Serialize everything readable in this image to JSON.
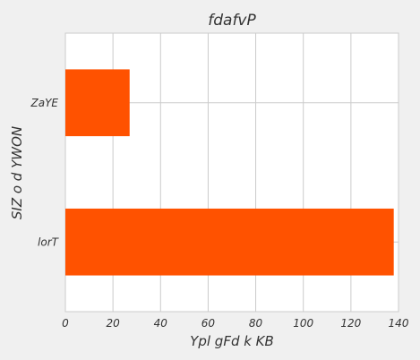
{
  "chart_data": {
    "type": "bar",
    "orientation": "horizontal",
    "title": "fdafvP",
    "xlabel": "Ypl gFd k KB",
    "ylabel": "SIZ  o d YWON",
    "categories": [
      "lorT",
      "ZaYE"
    ],
    "values": [
      138,
      27
    ],
    "xlim": [
      0,
      140
    ],
    "xticks": [
      0,
      20,
      40,
      60,
      80,
      100,
      120,
      140
    ],
    "grid": true,
    "bar_color": "#ff5200"
  }
}
